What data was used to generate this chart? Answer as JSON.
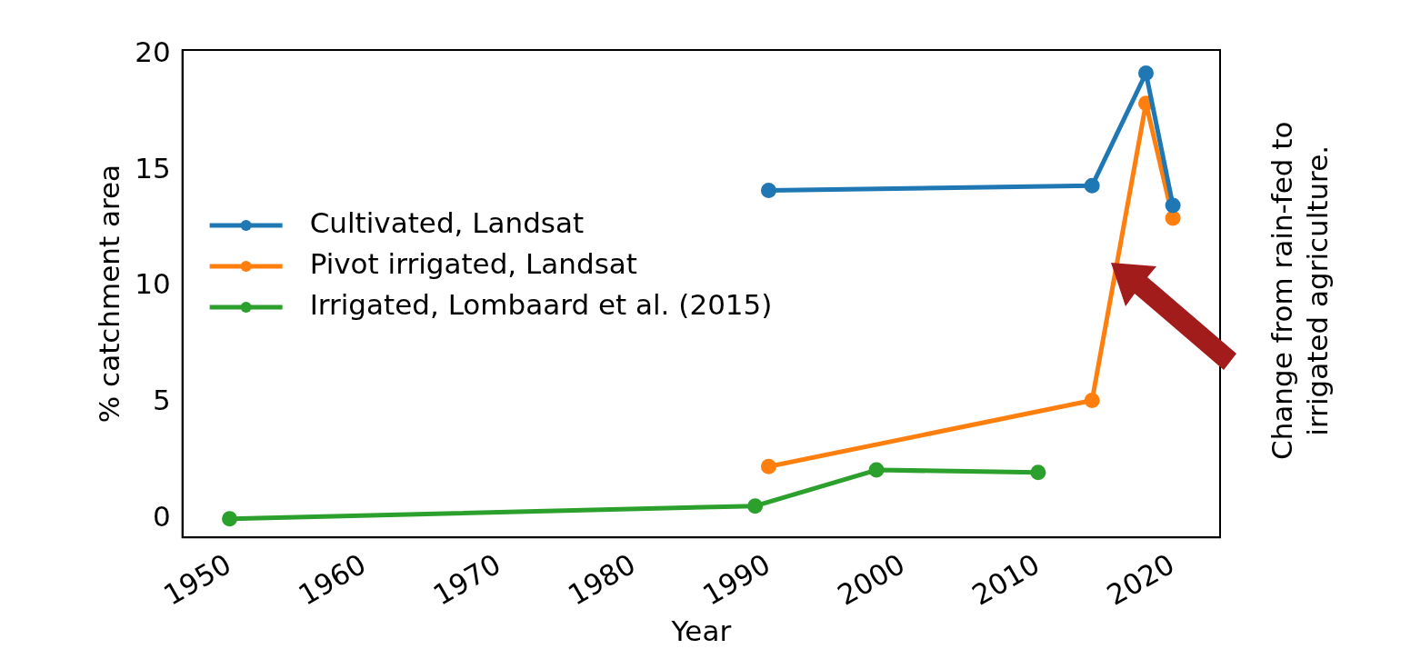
{
  "chart_data": {
    "type": "line",
    "xlabel": "Year",
    "ylabel": "% catchment area",
    "xlim": [
      1946.5,
      2023.5
    ],
    "xticks": [
      1950,
      1960,
      1970,
      1980,
      1990,
      2000,
      2010,
      2020
    ],
    "ylim": [
      -0.8,
      20.2
    ],
    "yticks": [
      0,
      5,
      10,
      15,
      20
    ],
    "grid": false,
    "legend": "center left",
    "marker": "circle",
    "line_style": "solid",
    "series": [
      {
        "name": "Cultivated, Landsat",
        "color": "#1f77b4",
        "x": [
          1990,
          2014,
          2018,
          2020
        ],
        "values": [
          14.15,
          14.35,
          19.2,
          13.5
        ]
      },
      {
        "name": "Pivot irrigated, Landsat",
        "color": "#ff7f0e",
        "x": [
          1990,
          2014,
          2018,
          2020
        ],
        "values": [
          2.25,
          5.1,
          17.9,
          12.95
        ]
      },
      {
        "name": "Irrigated, Lombaard et al. (2015)",
        "color": "#2ca02c",
        "x": [
          1950,
          1989,
          1998,
          2010
        ],
        "values": [
          0,
          0.55,
          2.1,
          2.0
        ]
      }
    ],
    "annotations": [
      "Change from rain-fed to irrigated agriculture."
    ]
  }
}
